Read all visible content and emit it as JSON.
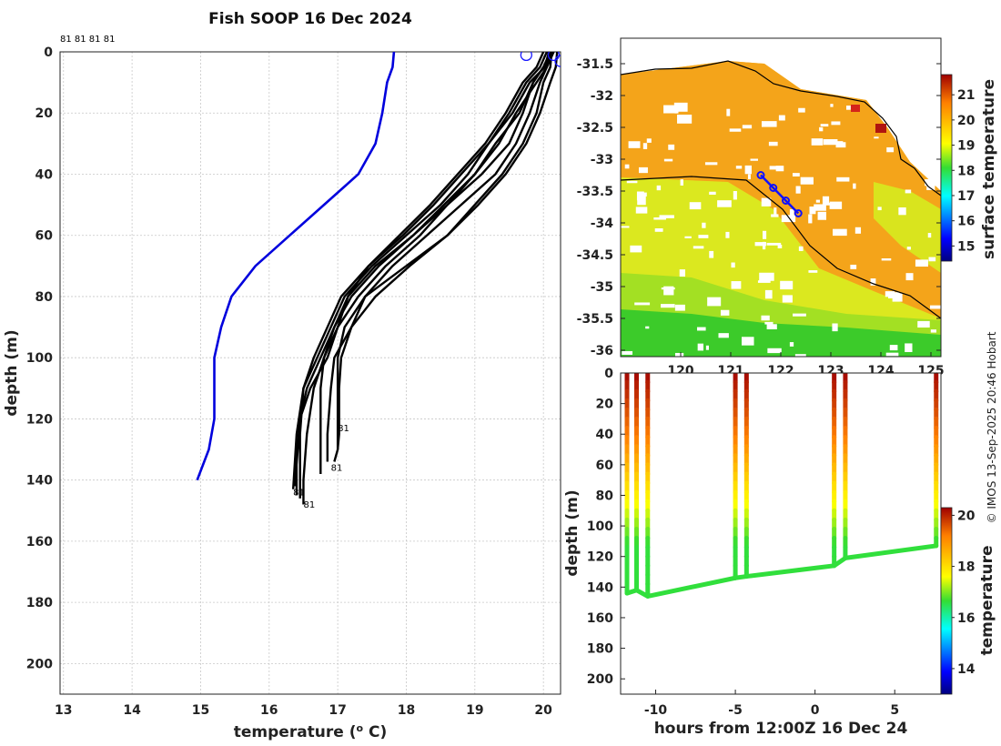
{
  "chart_data": [
    {
      "type": "line",
      "title": "Fish SOOP 16 Dec 2024",
      "xlabel": "temperature (",
      "xlabel_sup": "o",
      "xlabel_unit": " C)",
      "ylabel": "depth (m)",
      "xlim": [
        12.95,
        20.25
      ],
      "ylim": [
        210,
        0
      ],
      "x_ticks": [
        "13",
        "14",
        "15",
        "16",
        "17",
        "18",
        "19",
        "20"
      ],
      "y_ticks": [
        "0",
        "20",
        "40",
        "60",
        "80",
        "100",
        "120",
        "140",
        "160",
        "180",
        "200"
      ],
      "top_labels": "81 81 81 81",
      "profile_labels": [
        "81",
        "81",
        "81",
        "81"
      ],
      "climatology": {
        "name": "climatology",
        "color": "#0000dd",
        "points": [
          [
            17.82,
            0
          ],
          [
            17.8,
            5
          ],
          [
            17.72,
            10
          ],
          [
            17.65,
            20
          ],
          [
            17.55,
            30
          ],
          [
            17.3,
            40
          ],
          [
            16.8,
            50
          ],
          [
            16.3,
            60
          ],
          [
            15.8,
            70
          ],
          [
            15.45,
            80
          ],
          [
            15.3,
            90
          ],
          [
            15.2,
            100
          ],
          [
            15.2,
            110
          ],
          [
            15.2,
            120
          ],
          [
            15.12,
            130
          ],
          [
            14.95,
            140
          ]
        ]
      },
      "profiles": [
        {
          "name": "profile 1",
          "points": [
            [
              20.12,
              0
            ],
            [
              20.1,
              5
            ],
            [
              20.0,
              10
            ],
            [
              19.9,
              20
            ],
            [
              19.7,
              30
            ],
            [
              19.4,
              40
            ],
            [
              19.0,
              50
            ],
            [
              18.6,
              60
            ],
            [
              18.0,
              70
            ],
            [
              17.4,
              80
            ],
            [
              17.1,
              90
            ],
            [
              17.0,
              100
            ],
            [
              17.0,
              110
            ],
            [
              17.0,
              120
            ],
            [
              17.0,
              130
            ],
            [
              16.95,
              134
            ]
          ]
        },
        {
          "name": "profile 2",
          "points": [
            [
              20.15,
              0
            ],
            [
              20.05,
              5
            ],
            [
              19.95,
              10
            ],
            [
              19.8,
              20
            ],
            [
              19.6,
              30
            ],
            [
              19.3,
              40
            ],
            [
              18.8,
              50
            ],
            [
              18.3,
              60
            ],
            [
              17.8,
              70
            ],
            [
              17.4,
              80
            ],
            [
              17.2,
              90
            ],
            [
              16.95,
              100
            ],
            [
              16.9,
              110
            ],
            [
              16.85,
              125
            ],
            [
              16.85,
              134
            ]
          ]
        },
        {
          "name": "profile 3",
          "points": [
            [
              20.1,
              0
            ],
            [
              20.0,
              5
            ],
            [
              19.85,
              10
            ],
            [
              19.7,
              20
            ],
            [
              19.5,
              30
            ],
            [
              19.1,
              40
            ],
            [
              18.6,
              50
            ],
            [
              18.2,
              60
            ],
            [
              17.7,
              70
            ],
            [
              17.3,
              80
            ],
            [
              17.0,
              90
            ],
            [
              16.8,
              100
            ],
            [
              16.75,
              110
            ],
            [
              16.75,
              125
            ],
            [
              16.75,
              138
            ]
          ]
        },
        {
          "name": "profile 4",
          "points": [
            [
              20.1,
              0
            ],
            [
              20.05,
              5
            ],
            [
              19.9,
              10
            ],
            [
              19.6,
              20
            ],
            [
              19.35,
              30
            ],
            [
              19.0,
              40
            ],
            [
              18.6,
              50
            ],
            [
              18.1,
              60
            ],
            [
              17.6,
              70
            ],
            [
              17.2,
              80
            ],
            [
              16.95,
              90
            ],
            [
              16.75,
              100
            ],
            [
              16.55,
              110
            ],
            [
              16.45,
              120
            ],
            [
              16.4,
              135
            ],
            [
              16.4,
              145
            ]
          ]
        },
        {
          "name": "profile 5",
          "points": [
            [
              20.08,
              0
            ],
            [
              20.02,
              5
            ],
            [
              19.8,
              10
            ],
            [
              19.55,
              20
            ],
            [
              19.2,
              30
            ],
            [
              18.9,
              40
            ],
            [
              18.5,
              50
            ],
            [
              18.0,
              60
            ],
            [
              17.5,
              70
            ],
            [
              17.1,
              80
            ],
            [
              16.9,
              90
            ],
            [
              16.7,
              100
            ],
            [
              16.5,
              110
            ],
            [
              16.4,
              125
            ],
            [
              16.35,
              143
            ]
          ]
        },
        {
          "name": "profile 6",
          "points": [
            [
              20.05,
              0
            ],
            [
              19.95,
              5
            ],
            [
              19.75,
              10
            ],
            [
              19.5,
              20
            ],
            [
              19.2,
              30
            ],
            [
              18.8,
              40
            ],
            [
              18.4,
              50
            ],
            [
              17.95,
              60
            ],
            [
              17.45,
              70
            ],
            [
              17.05,
              80
            ],
            [
              16.85,
              90
            ],
            [
              16.65,
              100
            ],
            [
              16.5,
              110
            ],
            [
              16.45,
              125
            ],
            [
              16.45,
              146
            ]
          ]
        },
        {
          "name": "profile 7",
          "points": [
            [
              20.0,
              0
            ],
            [
              19.9,
              5
            ],
            [
              19.7,
              10
            ],
            [
              19.45,
              20
            ],
            [
              19.15,
              30
            ],
            [
              18.75,
              40
            ],
            [
              18.35,
              50
            ],
            [
              17.9,
              60
            ],
            [
              17.45,
              70
            ],
            [
              17.15,
              80
            ],
            [
              16.95,
              90
            ],
            [
              16.8,
              100
            ],
            [
              16.65,
              110
            ],
            [
              16.55,
              125
            ],
            [
              16.5,
              140
            ],
            [
              16.5,
              148
            ]
          ]
        },
        {
          "name": "profile 8",
          "points": [
            [
              20.2,
              0
            ],
            [
              20.18,
              5
            ],
            [
              20.1,
              10
            ],
            [
              19.95,
              20
            ],
            [
              19.75,
              30
            ],
            [
              19.45,
              40
            ],
            [
              19.05,
              50
            ],
            [
              18.6,
              60
            ],
            [
              18.05,
              70
            ],
            [
              17.55,
              80
            ],
            [
              17.2,
              90
            ],
            [
              17.05,
              100
            ],
            [
              17.02,
              110
            ],
            [
              17.02,
              125
            ],
            [
              17.0,
              130
            ]
          ]
        },
        {
          "name": "profile 9",
          "points": [
            [
              20.12,
              0
            ],
            [
              20.0,
              5
            ],
            [
              19.85,
              10
            ],
            [
              19.65,
              20
            ],
            [
              19.3,
              30
            ],
            [
              19.0,
              40
            ],
            [
              18.55,
              50
            ],
            [
              18.1,
              60
            ],
            [
              17.55,
              70
            ],
            [
              17.15,
              80
            ],
            [
              17.0,
              90
            ],
            [
              16.85,
              100
            ],
            [
              16.6,
              110
            ],
            [
              16.45,
              120
            ],
            [
              16.4,
              133
            ],
            [
              16.38,
              142
            ]
          ]
        }
      ],
      "surface_points": [
        [
          19.75,
          1
        ],
        [
          20.15,
          1
        ],
        [
          20.25,
          3
        ]
      ]
    },
    {
      "type": "heatmap",
      "xlim": [
        118.8,
        125.2
      ],
      "ylim": [
        -36.1,
        -31.1
      ],
      "y_ticks": [
        "-31.5",
        "-32",
        "-32.5",
        "-33",
        "-33.5",
        "-34",
        "-34.5",
        "-35",
        "-35.5",
        "-36"
      ],
      "x_ticks": [
        "120",
        "121",
        "122",
        "123",
        "124",
        "125"
      ],
      "colorbar_label": "surface temperature",
      "colorbar_range": [
        14.4,
        21.8
      ],
      "colorbar_ticks": [
        "21",
        "20",
        "19",
        "18",
        "17",
        "16",
        "15"
      ],
      "track": [
        [
          121.6,
          -33.25
        ],
        [
          121.85,
          -33.45
        ],
        [
          122.1,
          -33.65
        ],
        [
          122.35,
          -33.85
        ]
      ]
    },
    {
      "type": "scatter",
      "xlabel": "hours from 12:00Z 16 Dec 24",
      "ylabel": "depth (m)",
      "xlim": [
        -12.2,
        7.9
      ],
      "ylim": [
        210,
        0
      ],
      "x_ticks": [
        "-10",
        "-5",
        "0",
        "5"
      ],
      "y_ticks": [
        "0",
        "20",
        "40",
        "60",
        "80",
        "100",
        "120",
        "140",
        "160",
        "180",
        "200"
      ],
      "colorbar_label": "temperature",
      "colorbar_range": [
        13,
        20.3
      ],
      "colorbar_ticks": [
        "20",
        "18",
        "16",
        "14"
      ],
      "casts": [
        {
          "time": -11.8,
          "max_depth": 144
        },
        {
          "time": -11.2,
          "max_depth": 142
        },
        {
          "time": -10.5,
          "max_depth": 146
        },
        {
          "time": -5.0,
          "max_depth": 134
        },
        {
          "time": -4.3,
          "max_depth": 133
        },
        {
          "time": 1.2,
          "max_depth": 126
        },
        {
          "time": 1.9,
          "max_depth": 121
        },
        {
          "time": 7.6,
          "max_depth": 113
        }
      ]
    }
  ],
  "credit": "© IMOS 13-Sep-2025 20:46 Hobart"
}
